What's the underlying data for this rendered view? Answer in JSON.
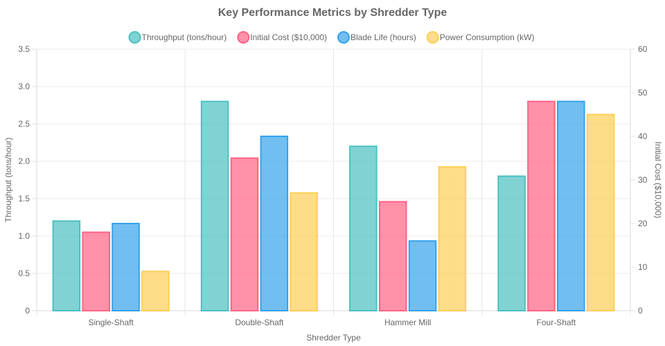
{
  "chart_data": {
    "type": "bar",
    "title": "Key Performance Metrics by Shredder Type",
    "xlabel": "Shredder Type",
    "ylabel": "Throughput (tons/hour)",
    "y2label": "Initial Cost ($10,000)",
    "categories": [
      "Single-Shaft",
      "Double-Shaft",
      "Hammer Mill",
      "Four-Shaft"
    ],
    "ylim": [
      0,
      3.5
    ],
    "y_ticks": [
      "0",
      "0.5",
      "1.0",
      "1.5",
      "2.0",
      "2.5",
      "3.0",
      "3.5"
    ],
    "y2lim": [
      0,
      60
    ],
    "y2_ticks": [
      "0",
      "10",
      "20",
      "30",
      "40",
      "50",
      "60"
    ],
    "series": [
      {
        "name": "Throughput (tons/hour)",
        "axis": "left",
        "values": [
          1.2,
          2.8,
          2.2,
          1.8
        ],
        "fill": "#4BC0C0",
        "border": "#4BC0C0"
      },
      {
        "name": "Initial Cost ($10,000)",
        "axis": "right",
        "values": [
          18,
          35,
          25,
          48
        ],
        "fill": "#FF6384",
        "border": "#FF6384"
      },
      {
        "name": "Blade Life (hours)",
        "axis": "right",
        "values": [
          20,
          40,
          16,
          48
        ],
        "fill": "#36A2EB",
        "border": "#36A2EB"
      },
      {
        "name": "Power Consumption (kW)",
        "axis": "right",
        "values": [
          9,
          27,
          33,
          45
        ],
        "fill": "#FFCE56",
        "border": "#FFCE56"
      }
    ]
  }
}
